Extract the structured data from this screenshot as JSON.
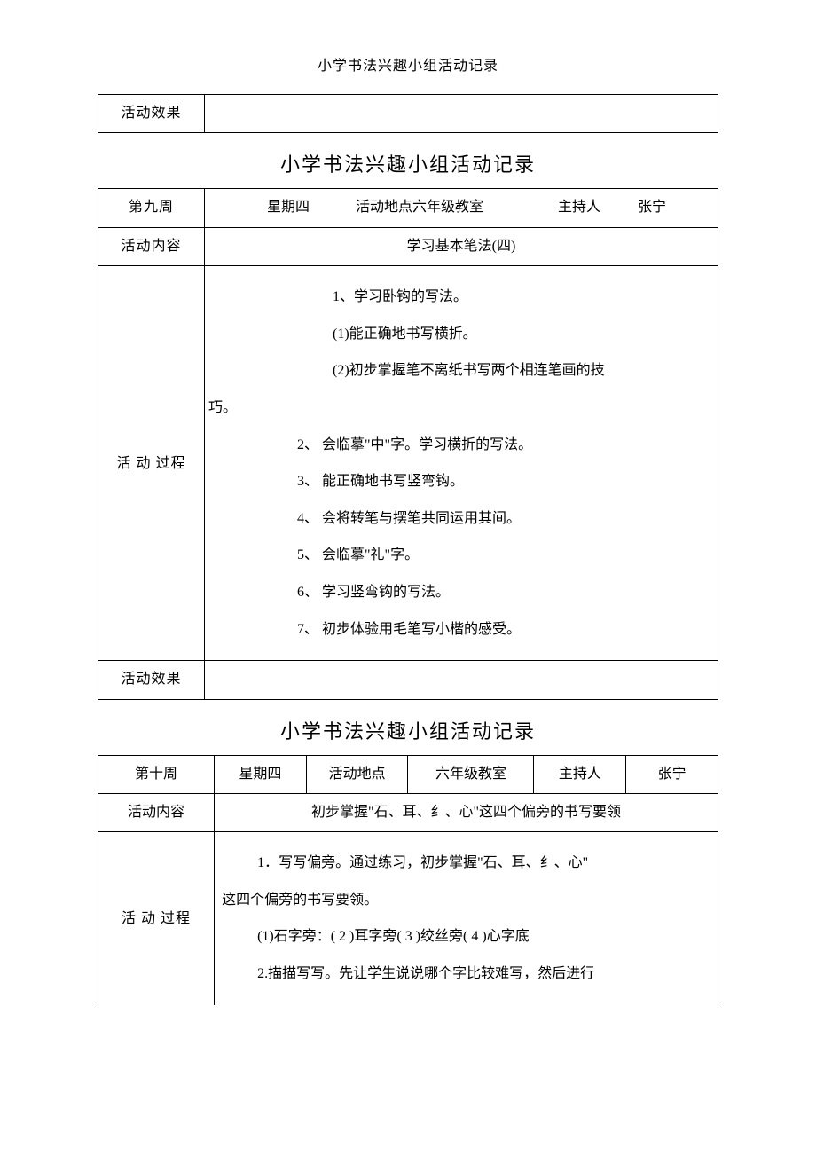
{
  "page_header": "小学书法兴趣小组活动记录",
  "table0": {
    "effect_label": "活动效果",
    "effect_value": ""
  },
  "section1_title": "小学书法兴趣小组活动记录",
  "table1": {
    "week": "第九周",
    "day": "星期四",
    "location_combined": "活动地点六年级教室",
    "host_label": "主持人",
    "host_name": "张宁",
    "content_label": "活动内容",
    "content_value": "学习基本笔法(四)",
    "process_label": "活 动 过程",
    "process_lines": {
      "l1": "1、学习卧钩的写法。",
      "l2": "(1)能正确地书写横折。",
      "l3": "(2)初步掌握笔不离纸书写两个相连笔画的技",
      "l4": "巧。",
      "l5": "2、 会临摹\"中\"字。学习横折的写法。",
      "l6": "3、 能正确地书写竖弯钩。",
      "l7": "4、 会将转笔与摆笔共同运用其间。",
      "l8": "5、 会临摹\"礼\"字。",
      "l9": "6、 学习竖弯钩的写法。",
      "l10": "7、 初步体验用毛笔写小楷的感受。"
    },
    "effect_label": "活动效果",
    "effect_value": ""
  },
  "section2_title": "小学书法兴趣小组活动记录",
  "table2": {
    "week": "第十周",
    "day": "星期四",
    "location_label": "活动地点",
    "location_value": "六年级教室",
    "host_label": "主持人",
    "host_name": "张宁",
    "content_label": "活动内容",
    "content_value": "初步掌握\"石、耳、纟、心\"这四个偏旁的书写要领",
    "process_label": "活 动 过程",
    "process_lines": {
      "l1": "1．写写偏旁。通过练习，初步掌握\"石、耳、纟、心\"",
      "l2": "这四个偏旁的书写要领。",
      "l3": "(1)石字旁：( 2 )耳字旁( 3 )绞丝旁( 4 )心字底",
      "l4": "2.描描写写。先让学生说说哪个字比较难写，然后进行"
    }
  }
}
